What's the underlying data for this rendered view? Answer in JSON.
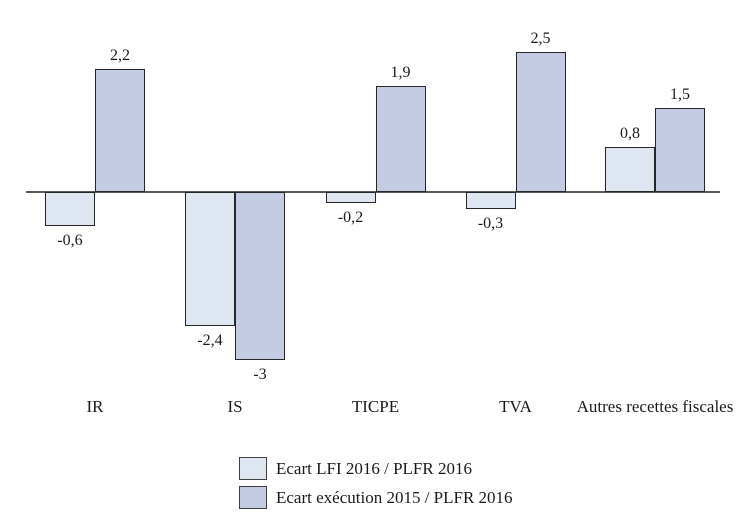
{
  "chart_data": {
    "type": "bar",
    "title": "",
    "xlabel": "",
    "ylabel": "",
    "categories": [
      "IR",
      "IS",
      "TICPE",
      "TVA",
      "Autres recettes fiscales"
    ],
    "series": [
      {
        "name": "Ecart LFI 2016 / PLFR 2016",
        "color": "#dde6f1",
        "values": [
          -0.6,
          -2.4,
          -0.2,
          -0.3,
          0.8
        ],
        "labels": [
          "-0,6",
          "-2,4",
          "-0,2",
          "-0,3",
          "0,8"
        ]
      },
      {
        "name": "Ecart exécution 2015 / PLFR 2016",
        "color": "#c4cce4",
        "values": [
          2.2,
          -3,
          1.9,
          2.5,
          1.5
        ],
        "labels": [
          "2,2",
          "-3",
          "1,9",
          "2,5",
          "1,5"
        ]
      }
    ],
    "ylim": [
      -3.5,
      3
    ],
    "grid": false,
    "legend_position": "bottom",
    "colors": {
      "bar_border": "#262626",
      "axis_line": "#595959",
      "text": "#1a1a1a"
    }
  }
}
